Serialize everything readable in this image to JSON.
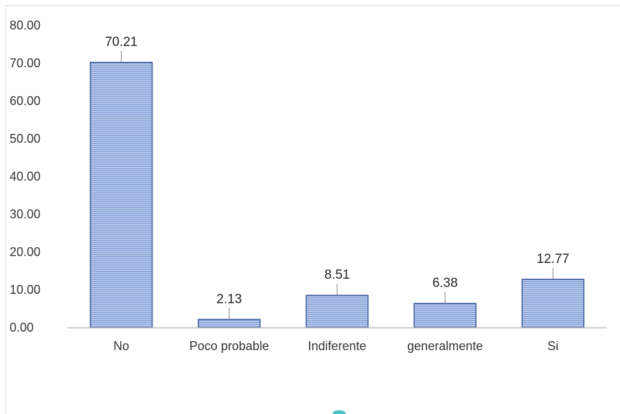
{
  "chart_data": {
    "type": "bar",
    "categories": [
      "No",
      "Poco probable",
      "Indiferente",
      "generalmente",
      "Si"
    ],
    "values": [
      70.21,
      2.13,
      8.51,
      6.38,
      12.77
    ],
    "data_labels": [
      "70.21",
      "2.13",
      "8.51",
      "6.38",
      "12.77"
    ],
    "y_ticks": [
      "0.00",
      "10.00",
      "20.00",
      "30.00",
      "40.00",
      "50.00",
      "60.00",
      "70.00",
      "80.00"
    ],
    "ylim": [
      0,
      80
    ],
    "grid": false,
    "legend": "none",
    "colors": {
      "bar_fill": "#8fa8dc",
      "bar_stripe": "#c9d6ef",
      "bar_edge": "#3d5a99",
      "axis": "#bfbfbf",
      "leader": "#808080",
      "partial_marker": "#4fc3c8"
    }
  }
}
